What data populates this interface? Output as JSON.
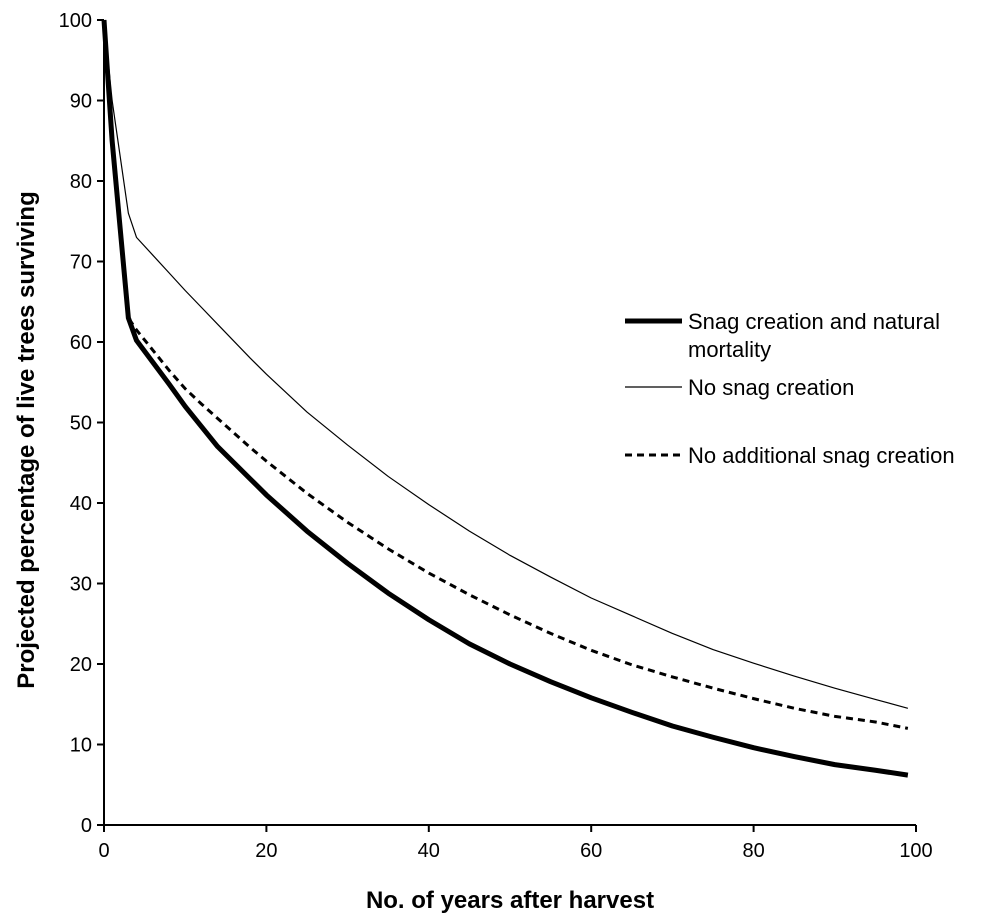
{
  "chart_data": {
    "type": "line",
    "title": "",
    "xlabel": "No. of years after harvest",
    "ylabel": "Projected percentage of live trees surviving",
    "xlim": [
      0,
      100
    ],
    "ylim": [
      0,
      100
    ],
    "x_ticks": [
      "0",
      "20",
      "40",
      "60",
      "80",
      "100"
    ],
    "y_ticks": [
      "0",
      "10",
      "20",
      "30",
      "40",
      "50",
      "60",
      "70",
      "80",
      "90",
      "100"
    ],
    "grid": false,
    "legend_position": "right",
    "x": [
      0,
      1,
      2,
      3,
      4,
      6,
      8,
      10,
      12,
      14,
      16,
      18,
      20,
      25,
      30,
      35,
      40,
      45,
      50,
      55,
      60,
      65,
      70,
      75,
      80,
      85,
      90,
      95,
      99
    ],
    "series": [
      {
        "name": "Snag creation and natural mortality",
        "style": "thick-solid",
        "values": [
          100,
          85,
          74,
          63,
          60.2,
          57.5,
          54.8,
          52.0,
          49.5,
          47.0,
          45.0,
          43.0,
          41.0,
          36.5,
          32.5,
          28.8,
          25.5,
          22.5,
          20.0,
          17.8,
          15.8,
          14.0,
          12.3,
          10.9,
          9.6,
          8.5,
          7.5,
          6.8,
          6.2
        ]
      },
      {
        "name": "No snag creation",
        "style": "thin-solid",
        "values": [
          100,
          90,
          83,
          76,
          73.0,
          70.8,
          68.6,
          66.4,
          64.3,
          62.2,
          60.1,
          58.0,
          56.0,
          51.3,
          47.2,
          43.3,
          39.8,
          36.5,
          33.5,
          30.8,
          28.2,
          26.0,
          23.8,
          21.8,
          20.1,
          18.5,
          17.0,
          15.6,
          14.5
        ]
      },
      {
        "name": "No additional snag creation",
        "style": "dashed",
        "values": [
          100,
          85,
          74,
          63,
          61.5,
          59.0,
          56.5,
          54.2,
          52.3,
          50.5,
          48.7,
          46.9,
          45.2,
          41.2,
          37.6,
          34.3,
          31.3,
          28.6,
          26.1,
          23.8,
          21.7,
          19.9,
          18.4,
          17.0,
          15.7,
          14.5,
          13.5,
          12.8,
          12.0
        ]
      }
    ]
  }
}
